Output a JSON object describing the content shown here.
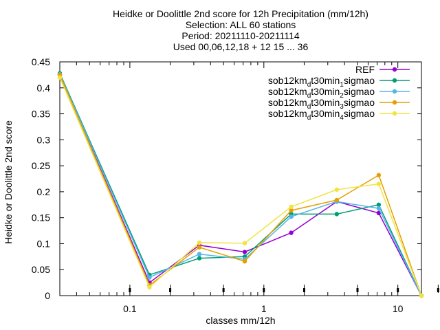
{
  "chart_data": {
    "type": "line",
    "title_lines": [
      "Heidke or Doolittle 2nd score  for 12h Precipitation (mm/12h)",
      "Selection: ALL     60 stations",
      "Period: 20211110-20211114",
      "Used 00,06,12,18 + 12 15 ... 36"
    ],
    "xlabel": "classes mm/12h",
    "ylabel": "Heidke or Doolittle 2nd score",
    "x_scale": "log",
    "xlim": [
      0.03,
      15.0
    ],
    "ylim": [
      0,
      0.45
    ],
    "y_ticks": [
      "0",
      "0.05",
      "0.1",
      "0.15",
      "0.2",
      "0.25",
      "0.3",
      "0.35",
      "0.4",
      "0.45"
    ],
    "x_ticks": [
      {
        "value": 0.1,
        "label": "0.1"
      },
      {
        "value": 1,
        "label": "1"
      },
      {
        "value": 10,
        "label": "10"
      }
    ],
    "x_minor_marks": [
      0.1,
      0.2,
      0.5,
      1,
      2,
      5,
      10,
      20
    ],
    "legend_position": "top-right",
    "x": [
      0.03,
      0.14,
      0.33,
      0.72,
      1.6,
      3.5,
      7.2,
      15.0
    ],
    "series": [
      {
        "name": "REF",
        "subscripts": [],
        "color": "#9400d3",
        "values": [
          0.425,
          0.025,
          0.097,
          0.084,
          0.121,
          0.181,
          0.159,
          0.0
        ]
      },
      {
        "name": "sob12km_dt30min_1sigmao",
        "parts": [
          [
            "sob12km",
            "n"
          ],
          [
            "d",
            "s"
          ],
          [
            "t30min",
            "n"
          ],
          [
            "1",
            "s"
          ],
          [
            "sigmao",
            "n"
          ]
        ],
        "color": "#009e73",
        "values": [
          0.428,
          0.04,
          0.072,
          0.075,
          0.157,
          0.157,
          0.175,
          0.0
        ]
      },
      {
        "name": "sob12km_dt30min_2sigmao",
        "parts": [
          [
            "sob12km",
            "n"
          ],
          [
            "d",
            "s"
          ],
          [
            "t30min",
            "n"
          ],
          [
            "2",
            "s"
          ],
          [
            "sigmao",
            "n"
          ]
        ],
        "color": "#56b4e9",
        "values": [
          0.426,
          0.035,
          0.08,
          0.07,
          0.152,
          0.181,
          0.168,
          0.0
        ]
      },
      {
        "name": "sob12km_dt30min_3sigmao",
        "parts": [
          [
            "sob12km",
            "n"
          ],
          [
            "d",
            "s"
          ],
          [
            "t30min",
            "n"
          ],
          [
            "3",
            "s"
          ],
          [
            "sigmao",
            "n"
          ]
        ],
        "color": "#e69f00",
        "values": [
          0.425,
          0.02,
          0.093,
          0.066,
          0.164,
          0.184,
          0.232,
          0.0
        ]
      },
      {
        "name": "sob12km_dt30min_4sigmao",
        "parts": [
          [
            "sob12km",
            "n"
          ],
          [
            "d",
            "s"
          ],
          [
            "t30min",
            "n"
          ],
          [
            "4",
            "s"
          ],
          [
            "sigmao",
            "n"
          ]
        ],
        "color": "#f0e442",
        "values": [
          0.42,
          0.016,
          0.102,
          0.101,
          0.171,
          0.204,
          0.215,
          0.0
        ]
      }
    ]
  }
}
